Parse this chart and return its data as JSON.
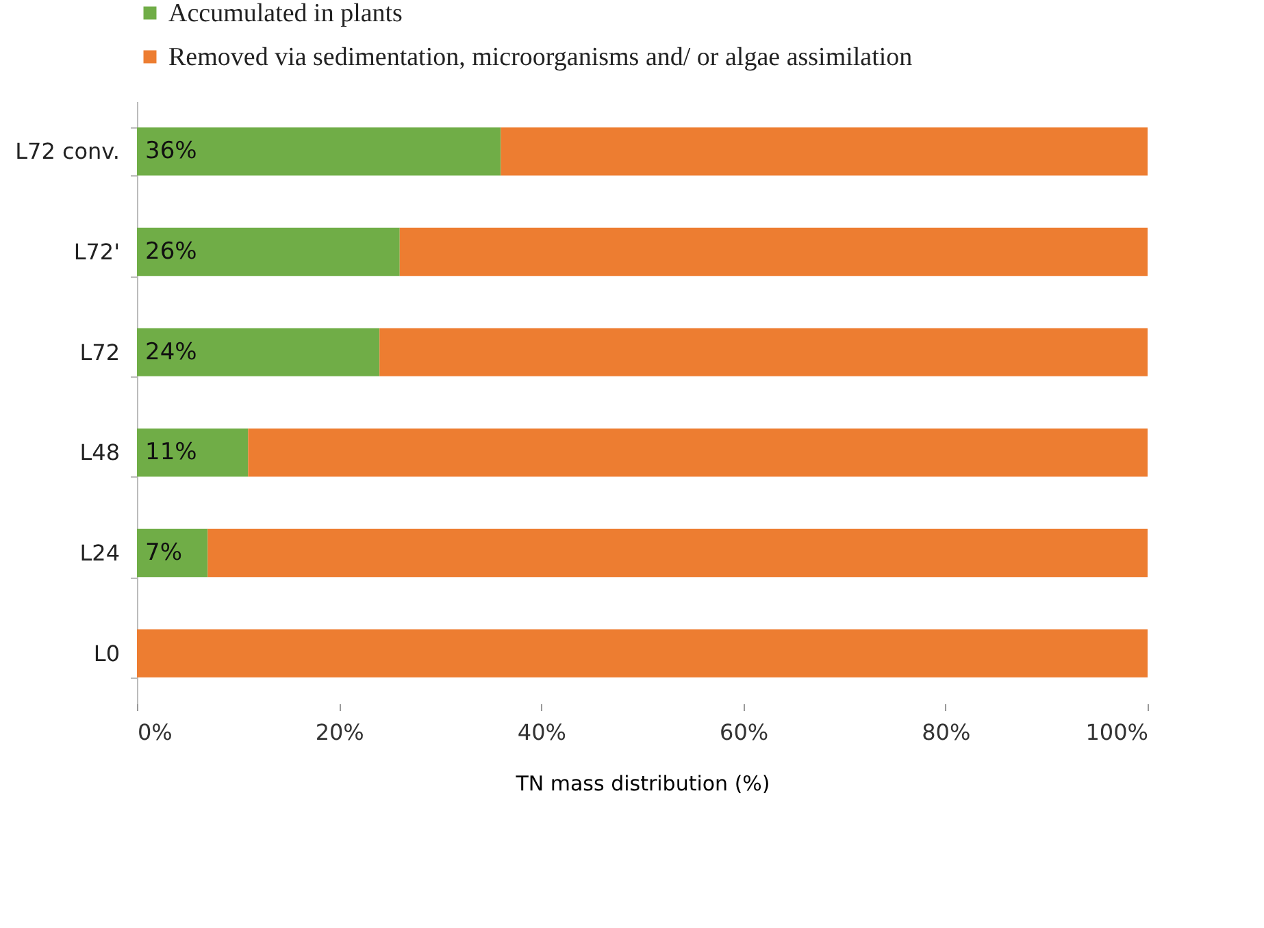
{
  "chart_data": {
    "type": "bar",
    "orientation": "horizontal",
    "stacked": true,
    "categories": [
      "L72 conv.",
      "L72'",
      "L72",
      "L48",
      "L24",
      "L0"
    ],
    "series": [
      {
        "name": "Accumulated in plants",
        "color": "#70ad47",
        "values": [
          36,
          26,
          24,
          11,
          7,
          0
        ],
        "value_labels": [
          "36%",
          "26%",
          "24%",
          "11%",
          "7%",
          null
        ]
      },
      {
        "name": "Removed via sedimentation, microorganisms and/ or algae assimilation",
        "color": "#ed7d31",
        "values": [
          64,
          74,
          76,
          89,
          93,
          100
        ]
      }
    ],
    "xlim": [
      0,
      100
    ],
    "xticks": [
      {
        "value": 0,
        "label": "0%"
      },
      {
        "value": 20,
        "label": "20%"
      },
      {
        "value": 40,
        "label": "40%"
      },
      {
        "value": 60,
        "label": "60%"
      },
      {
        "value": 80,
        "label": "80%"
      },
      {
        "value": 100,
        "label": "100%"
      }
    ],
    "xlabel": "TN mass distribution (%)",
    "legend": "top left",
    "grid": false
  }
}
